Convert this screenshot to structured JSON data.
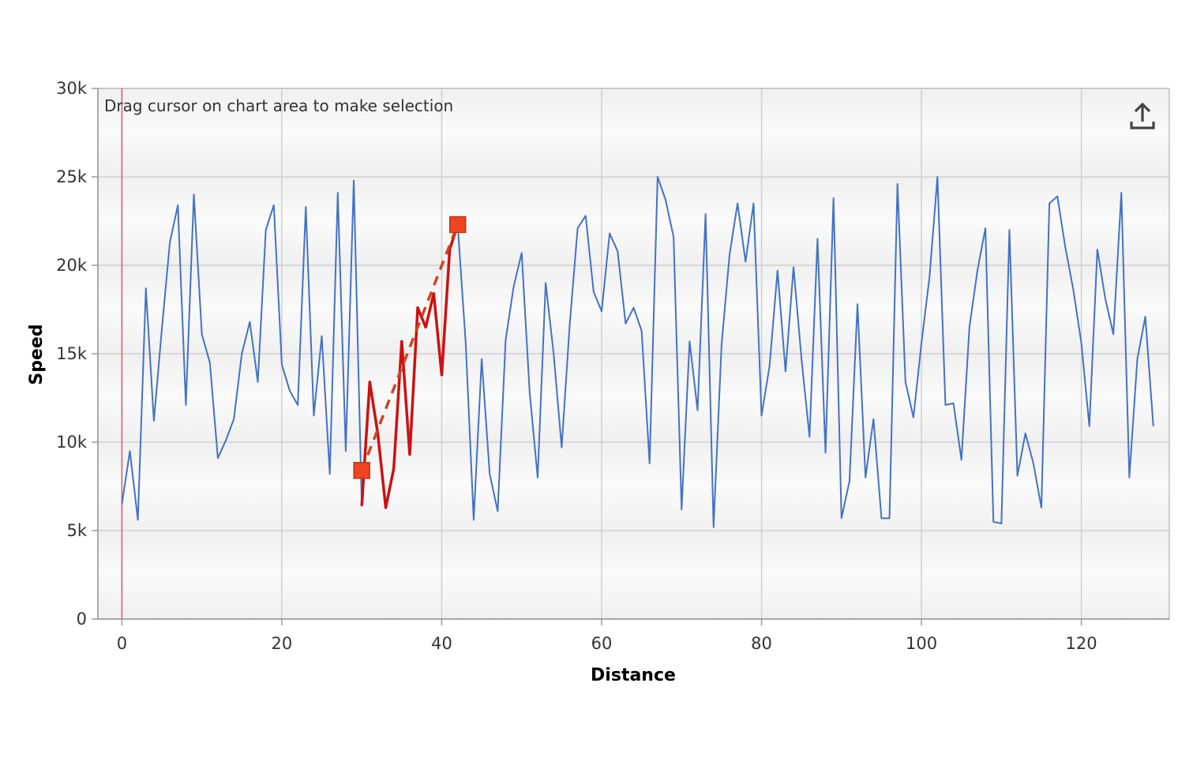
{
  "chart_data": {
    "type": "line",
    "xlabel": "Distance",
    "ylabel": "Speed",
    "xlim": [
      -3,
      131
    ],
    "ylim": [
      0,
      30000
    ],
    "x_ticks": [
      0,
      20,
      40,
      60,
      80,
      100,
      120
    ],
    "y_ticks": [
      0,
      5000,
      10000,
      15000,
      20000,
      25000,
      30000
    ],
    "y_tick_labels": [
      "0",
      "5k",
      "10k",
      "15k",
      "20k",
      "25k",
      "30k"
    ],
    "x_tick_labels": [
      "0",
      "20",
      "40",
      "60",
      "80",
      "100",
      "120"
    ],
    "grid": true,
    "hint_text": "Drag cursor on chart area to make selection",
    "cursor_x": 0,
    "colors": {
      "series": "#4472c4",
      "highlight": "#cc1111",
      "trend": "#cc4422",
      "marker_fill": "#ee4422",
      "cursor": "#cc6666"
    },
    "series": [
      {
        "x": [
          0,
          1,
          2,
          3,
          4,
          5,
          6,
          7,
          8,
          9,
          10,
          11,
          12,
          13,
          14,
          15,
          16,
          17,
          18,
          19,
          20,
          21,
          22,
          23,
          24,
          25,
          26,
          27,
          28,
          29,
          30,
          31,
          32,
          33,
          34,
          35,
          36,
          37,
          38,
          39,
          40,
          41,
          42,
          43,
          44,
          45,
          46,
          47,
          48,
          49,
          50,
          51,
          52,
          53,
          54,
          55,
          56,
          57,
          58,
          59,
          60,
          61,
          62,
          63,
          64,
          65,
          66,
          67,
          68,
          69,
          70,
          71,
          72,
          73,
          74,
          75,
          76,
          77,
          78,
          79,
          80,
          81,
          82,
          83,
          84,
          85,
          86,
          87,
          88,
          89,
          90,
          91,
          92,
          93,
          94,
          95,
          96,
          97,
          98,
          99,
          100,
          101,
          102,
          103,
          104,
          105,
          106,
          107,
          108,
          109,
          110,
          111,
          112,
          113,
          114,
          115,
          116,
          117,
          118,
          119,
          120,
          121,
          122,
          123,
          124,
          125,
          126,
          127,
          128,
          129
        ],
        "y": [
          6500,
          9500,
          5600,
          18700,
          11200,
          16400,
          21300,
          23400,
          12100,
          24000,
          16100,
          14500,
          9100,
          10100,
          11300,
          15000,
          16800,
          13400,
          22000,
          23400,
          14400,
          12900,
          12100,
          23300,
          11500,
          16000,
          8200,
          24100,
          9500,
          24800,
          6400,
          13400,
          10500,
          6300,
          8500,
          15700,
          9300,
          17600,
          16500,
          18400,
          13800,
          20900,
          22300,
          15600,
          5600,
          14700,
          8200,
          6100,
          15800,
          18800,
          20700,
          12800,
          8000,
          19000,
          15000,
          9700,
          16600,
          22100,
          22800,
          18500,
          17400,
          21800,
          20800,
          16700,
          17600,
          16300,
          8800,
          25000,
          23700,
          21600,
          6200,
          15700,
          11800,
          22900,
          5200,
          15500,
          20600,
          23500,
          20200,
          23500,
          11500,
          14300,
          19700,
          14000,
          19900,
          14700,
          10300,
          21500,
          9400,
          23800,
          5700,
          7800,
          17800,
          8000,
          11300,
          5700,
          5700,
          24600,
          13400,
          11400,
          15600,
          19300,
          25000,
          12100,
          12200,
          9000,
          16500,
          19700,
          22100,
          5500,
          5400,
          22000,
          8100,
          10500,
          8800,
          6300,
          23500,
          23900,
          21000,
          18600,
          15600,
          10900,
          20900,
          18100,
          16100,
          24100,
          8000,
          14700,
          17100,
          10900
        ],
        "highlight_range": [
          30,
          42
        ],
        "trend_line": {
          "x": [
            30,
            42
          ],
          "y": [
            8400,
            22300
          ]
        }
      }
    ]
  }
}
